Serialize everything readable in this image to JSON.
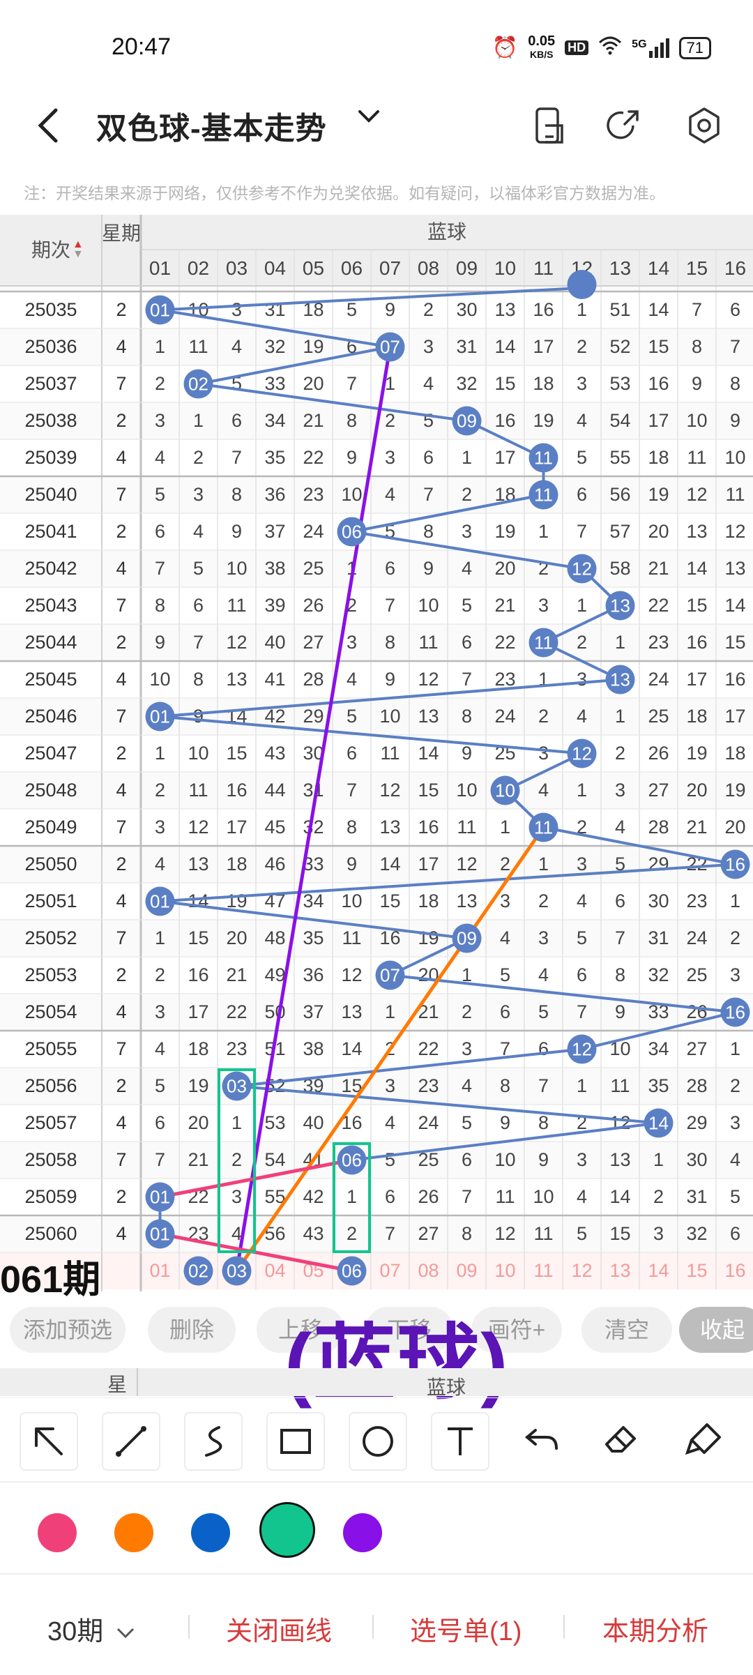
{
  "status_bar": {
    "time": "20:47",
    "net_speed": "0.05",
    "net_unit": "KB/S",
    "hd": "HD",
    "signal": "5G",
    "battery": "71"
  },
  "header": {
    "title": "双色球-基本走势"
  },
  "notice": "注：开奖结果来源于网络，仅供参考不作为兑奖依据。如有疑问，以福体彩官方数据为准。",
  "table": {
    "col_issue": "期次",
    "col_weekday": "星期",
    "group_label": "蓝球",
    "ball_headers": [
      "01",
      "02",
      "03",
      "04",
      "05",
      "06",
      "07",
      "08",
      "09",
      "10",
      "11",
      "12",
      "13",
      "14",
      "15",
      "16"
    ],
    "rows": [
      {
        "issue": "25035",
        "week": "2",
        "hit": 1,
        "cells": [
          "01",
          "10",
          "3",
          "31",
          "18",
          "5",
          "9",
          "2",
          "30",
          "13",
          "16",
          "1",
          "51",
          "14",
          "7",
          "6"
        ]
      },
      {
        "issue": "25036",
        "week": "4",
        "hit": 7,
        "cells": [
          "1",
          "11",
          "4",
          "32",
          "19",
          "6",
          "07",
          "3",
          "31",
          "14",
          "17",
          "2",
          "52",
          "15",
          "8",
          "7"
        ]
      },
      {
        "issue": "25037",
        "week": "7",
        "hit": 2,
        "cells": [
          "2",
          "02",
          "5",
          "33",
          "20",
          "7",
          "1",
          "4",
          "32",
          "15",
          "18",
          "3",
          "53",
          "16",
          "9",
          "8"
        ]
      },
      {
        "issue": "25038",
        "week": "2",
        "hit": 9,
        "cells": [
          "3",
          "1",
          "6",
          "34",
          "21",
          "8",
          "2",
          "5",
          "09",
          "16",
          "19",
          "4",
          "54",
          "17",
          "10",
          "9"
        ]
      },
      {
        "issue": "25039",
        "week": "4",
        "hit": 11,
        "cells": [
          "4",
          "2",
          "7",
          "35",
          "22",
          "9",
          "3",
          "6",
          "1",
          "17",
          "11",
          "5",
          "55",
          "18",
          "11",
          "10"
        ]
      },
      {
        "issue": "25040",
        "week": "7",
        "hit": 11,
        "cells": [
          "5",
          "3",
          "8",
          "36",
          "23",
          "10",
          "4",
          "7",
          "2",
          "18",
          "11",
          "6",
          "56",
          "19",
          "12",
          "11"
        ]
      },
      {
        "issue": "25041",
        "week": "2",
        "hit": 6,
        "cells": [
          "6",
          "4",
          "9",
          "37",
          "24",
          "06",
          "5",
          "8",
          "3",
          "19",
          "1",
          "7",
          "57",
          "20",
          "13",
          "12"
        ]
      },
      {
        "issue": "25042",
        "week": "4",
        "hit": 12,
        "cells": [
          "7",
          "5",
          "10",
          "38",
          "25",
          "1",
          "6",
          "9",
          "4",
          "20",
          "2",
          "12",
          "58",
          "21",
          "14",
          "13"
        ]
      },
      {
        "issue": "25043",
        "week": "7",
        "hit": 13,
        "cells": [
          "8",
          "6",
          "11",
          "39",
          "26",
          "2",
          "7",
          "10",
          "5",
          "21",
          "3",
          "1",
          "13",
          "22",
          "15",
          "14"
        ]
      },
      {
        "issue": "25044",
        "week": "2",
        "hit": 11,
        "cells": [
          "9",
          "7",
          "12",
          "40",
          "27",
          "3",
          "8",
          "11",
          "6",
          "22",
          "11",
          "2",
          "1",
          "23",
          "16",
          "15"
        ]
      },
      {
        "issue": "25045",
        "week": "4",
        "hit": 13,
        "cells": [
          "10",
          "8",
          "13",
          "41",
          "28",
          "4",
          "9",
          "12",
          "7",
          "23",
          "1",
          "3",
          "13",
          "24",
          "17",
          "16"
        ]
      },
      {
        "issue": "25046",
        "week": "7",
        "hit": 1,
        "cells": [
          "01",
          "9",
          "14",
          "42",
          "29",
          "5",
          "10",
          "13",
          "8",
          "24",
          "2",
          "4",
          "1",
          "25",
          "18",
          "17"
        ]
      },
      {
        "issue": "25047",
        "week": "2",
        "hit": 12,
        "cells": [
          "1",
          "10",
          "15",
          "43",
          "30",
          "6",
          "11",
          "14",
          "9",
          "25",
          "3",
          "12",
          "2",
          "26",
          "19",
          "18"
        ]
      },
      {
        "issue": "25048",
        "week": "4",
        "hit": 10,
        "cells": [
          "2",
          "11",
          "16",
          "44",
          "31",
          "7",
          "12",
          "15",
          "10",
          "10",
          "4",
          "1",
          "3",
          "27",
          "20",
          "19"
        ]
      },
      {
        "issue": "25049",
        "week": "7",
        "hit": 11,
        "cells": [
          "3",
          "12",
          "17",
          "45",
          "32",
          "8",
          "13",
          "16",
          "11",
          "1",
          "11",
          "2",
          "4",
          "28",
          "21",
          "20"
        ]
      },
      {
        "issue": "25050",
        "week": "2",
        "hit": 16,
        "cells": [
          "4",
          "13",
          "18",
          "46",
          "33",
          "9",
          "14",
          "17",
          "12",
          "2",
          "1",
          "3",
          "5",
          "29",
          "22",
          "16"
        ]
      },
      {
        "issue": "25051",
        "week": "4",
        "hit": 1,
        "cells": [
          "01",
          "14",
          "19",
          "47",
          "34",
          "10",
          "15",
          "18",
          "13",
          "3",
          "2",
          "4",
          "6",
          "30",
          "23",
          "1"
        ]
      },
      {
        "issue": "25052",
        "week": "7",
        "hit": 9,
        "cells": [
          "1",
          "15",
          "20",
          "48",
          "35",
          "11",
          "16",
          "19",
          "09",
          "4",
          "3",
          "5",
          "7",
          "31",
          "24",
          "2"
        ]
      },
      {
        "issue": "25053",
        "week": "2",
        "hit": 7,
        "cells": [
          "2",
          "16",
          "21",
          "49",
          "36",
          "12",
          "07",
          "20",
          "1",
          "5",
          "4",
          "6",
          "8",
          "32",
          "25",
          "3"
        ]
      },
      {
        "issue": "25054",
        "week": "4",
        "hit": 16,
        "cells": [
          "3",
          "17",
          "22",
          "50",
          "37",
          "13",
          "1",
          "21",
          "2",
          "6",
          "5",
          "7",
          "9",
          "33",
          "26",
          "16"
        ]
      },
      {
        "issue": "25055",
        "week": "7",
        "hit": 12,
        "cells": [
          "4",
          "18",
          "23",
          "51",
          "38",
          "14",
          "2",
          "22",
          "3",
          "7",
          "6",
          "12",
          "10",
          "34",
          "27",
          "1"
        ]
      },
      {
        "issue": "25056",
        "week": "2",
        "hit": 3,
        "cells": [
          "5",
          "19",
          "03",
          "52",
          "39",
          "15",
          "3",
          "23",
          "4",
          "8",
          "7",
          "1",
          "11",
          "35",
          "28",
          "2"
        ]
      },
      {
        "issue": "25057",
        "week": "4",
        "hit": 14,
        "cells": [
          "6",
          "20",
          "1",
          "53",
          "40",
          "16",
          "4",
          "24",
          "5",
          "9",
          "8",
          "2",
          "12",
          "14",
          "29",
          "3"
        ]
      },
      {
        "issue": "25058",
        "week": "7",
        "hit": 6,
        "cells": [
          "7",
          "21",
          "2",
          "54",
          "41",
          "06",
          "5",
          "25",
          "6",
          "10",
          "9",
          "3",
          "13",
          "1",
          "30",
          "4"
        ]
      },
      {
        "issue": "25059",
        "week": "2",
        "hit": 1,
        "cells": [
          "01",
          "22",
          "3",
          "55",
          "42",
          "1",
          "6",
          "26",
          "7",
          "11",
          "10",
          "4",
          "14",
          "2",
          "31",
          "5"
        ]
      },
      {
        "issue": "25060",
        "week": "4",
        "hit": 1,
        "cells": [
          "01",
          "23",
          "4",
          "56",
          "43",
          "2",
          "7",
          "27",
          "8",
          "12",
          "11",
          "5",
          "15",
          "3",
          "32",
          "6"
        ]
      }
    ],
    "next_issue_label": "061期",
    "next_picks": [
      2,
      3,
      6
    ]
  },
  "actions": {
    "add": "添加预选",
    "delete": "删除",
    "up": "上移",
    "down": "下移",
    "plus": "画符+",
    "clear": "清空",
    "collapse": "收起"
  },
  "annotation_label": "(蓝球)",
  "subheader": {
    "week": "星",
    "group": "蓝球"
  },
  "tools": [
    "arrow-tool-icon",
    "line-tool-icon",
    "curve-tool-icon",
    "rectangle-tool-icon",
    "circle-tool-icon",
    "text-tool-icon",
    "undo-icon",
    "eraser-icon",
    "clear-brush-icon"
  ],
  "palette": [
    "#f0407a",
    "#ff7a00",
    "#0a62c9",
    "#12c58e",
    "#8a10e8"
  ],
  "bottom_bar": {
    "periods": "30期",
    "close_draw": "关闭画线",
    "pick_list": "选号单(1)",
    "analysis": "本期分析"
  }
}
